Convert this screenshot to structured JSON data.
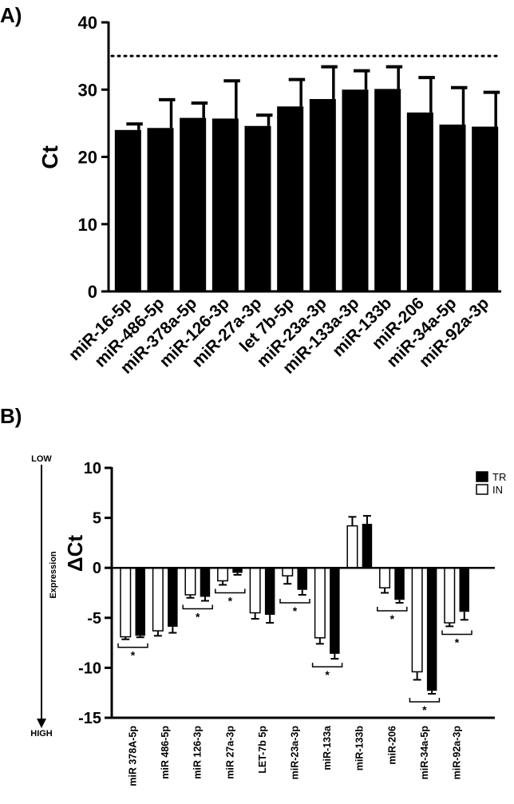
{
  "figure": {
    "panel_a_label": "A)",
    "panel_b_label": "B)"
  },
  "chart_data": [
    {
      "type": "bar",
      "panel": "A)",
      "categories": [
        "miR-16-5p",
        "miR-486-5p",
        "miR-378a-5p",
        "miR-126-3p",
        "miR-27a-3p",
        "let 7b-5p",
        "miR-23a-3p",
        "miR-133a-3p",
        "miR-133b",
        "miR-206",
        "miR-34a-5p",
        "miR-92a-3p"
      ],
      "values": [
        24.0,
        24.3,
        25.8,
        25.7,
        24.6,
        27.5,
        28.6,
        30.0,
        30.1,
        26.6,
        24.8,
        24.5
      ],
      "errors": [
        0.9,
        4.2,
        2.2,
        5.6,
        1.6,
        4.0,
        4.8,
        2.8,
        3.3,
        5.2,
        5.5,
        5.1
      ],
      "ylabel": "Ct",
      "ylim": [
        0,
        40
      ],
      "yticks": [
        0,
        10,
        20,
        30,
        40
      ],
      "threshold": 35,
      "bar_color": "#000000"
    },
    {
      "type": "bar",
      "panel": "B)",
      "categories": [
        "miR 378A-5p",
        "miR 486-5p",
        "miR 126-3p",
        "miR 27a-3p",
        "LET-7b 5p",
        "miR-23a-3p",
        "miR-133a",
        "miR-133b",
        "miR-206",
        "miR-34a-5p",
        "miR-92a-3p"
      ],
      "series": [
        {
          "name": "IN",
          "color": "#ffffff",
          "values": [
            -6.9,
            -6.3,
            -2.7,
            -1.3,
            -4.5,
            -0.8,
            -7.0,
            4.2,
            -2.0,
            -10.4,
            -5.5
          ],
          "errors": [
            0.25,
            0.5,
            0.3,
            0.4,
            0.6,
            0.8,
            0.6,
            0.9,
            0.5,
            0.8,
            0.35
          ]
        },
        {
          "name": "TR",
          "color": "#000000",
          "values": [
            -6.8,
            -5.9,
            -2.9,
            -0.5,
            -4.7,
            -2.2,
            -8.6,
            4.4,
            -3.2,
            -12.3,
            -4.4
          ],
          "errors": [
            0.15,
            0.6,
            0.4,
            0.2,
            0.8,
            0.5,
            0.5,
            0.8,
            0.3,
            0.3,
            0.8
          ]
        }
      ],
      "significance": [
        "*",
        "",
        "*",
        "*",
        "",
        "*",
        "*",
        "",
        "*",
        "*",
        "*"
      ],
      "ylabel": "ΔCt",
      "ylim": [
        -15,
        10
      ],
      "yticks": [
        -15,
        -10,
        -5,
        0,
        5,
        10
      ],
      "legend_position": "top-right",
      "expression_axis": {
        "top": "LOW",
        "middle": "Expression",
        "bottom": "HIGH"
      }
    }
  ]
}
